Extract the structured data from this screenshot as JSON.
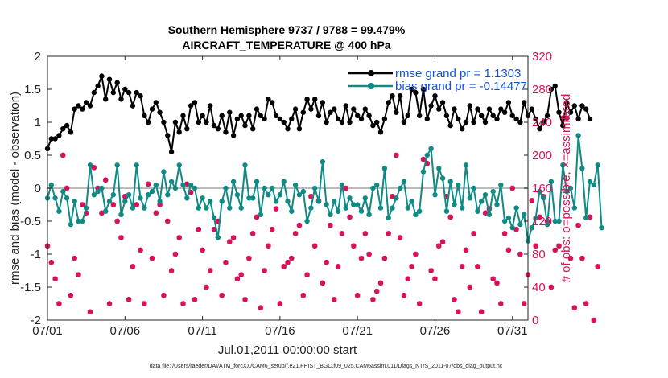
{
  "chart_data": {
    "type": "line",
    "title_line1": "Southern Hemisphere 9737 / 9788 = 99.479%",
    "title_line2": "AIRCRAFT_TEMPERATURE @ 400 hPa",
    "ylabel_left": "rmse and bias (model - observation)",
    "ylabel_right": "# of obs: o=possible; ×=assimilated",
    "xlabel": "Jul.01,2011 00:00:00 start",
    "footnote": "data file: /Users/raeder/DAI/ATM_forcXX/CAM6_setup/f.e21.FHIST_BGC.f09_025.CAM6assim.011/Diags_NTrS_2011-07/obs_diag_output.nc",
    "ylim_left": [
      -2,
      2
    ],
    "ylim_right": [
      0,
      320
    ],
    "xlim": [
      1,
      32
    ],
    "x_ticks": [
      1,
      6,
      11,
      16,
      21,
      26,
      31
    ],
    "x_tick_labels": [
      "07/01",
      "07/06",
      "07/11",
      "07/16",
      "07/21",
      "07/26",
      "07/31"
    ],
    "y_ticks_left": [
      -2,
      -1.5,
      -1,
      -0.5,
      0,
      0.5,
      1,
      1.5,
      2
    ],
    "y_tick_labels_left": [
      "-2",
      "-1.5",
      "-1",
      "-0.5",
      "0",
      "0.5",
      "1",
      "1.5",
      "2"
    ],
    "y_ticks_right": [
      0,
      40,
      80,
      120,
      160,
      200,
      240,
      280,
      320
    ],
    "y_tick_labels_right": [
      "0",
      "40",
      "80",
      "120",
      "160",
      "200",
      "240",
      "280",
      "320"
    ],
    "zero_line": 0,
    "colors": {
      "rmse": "#000000",
      "bias": "#0f8a84",
      "obs": "#d6125a",
      "zero": "#bbbbbb",
      "legend_text": "#1450d6"
    },
    "series": [
      {
        "name": "rmse grand pr = 1.1303",
        "x_start": 1,
        "x_step": 0.25,
        "values": [
          0.6,
          0.75,
          0.75,
          0.8,
          0.9,
          0.95,
          0.85,
          1.2,
          1.25,
          1.2,
          1.3,
          1.25,
          1.45,
          1.55,
          1.7,
          1.35,
          1.65,
          1.45,
          1.6,
          1.35,
          1.5,
          1.45,
          1.25,
          1.45,
          1.4,
          1.1,
          1.0,
          1.2,
          1.3,
          1.15,
          1.0,
          0.8,
          0.55,
          1.0,
          0.85,
          1.1,
          0.9,
          1.25,
          1.3,
          1.0,
          1.1,
          1.0,
          1.25,
          0.95,
          0.9,
          1.1,
          0.85,
          1.15,
          0.8,
          1.05,
          1.1,
          0.95,
          1.1,
          0.9,
          1.2,
          1.1,
          1.05,
          1.35,
          1.3,
          1.1,
          1.05,
          1.0,
          0.9,
          1.05,
          1.2,
          0.9,
          1.15,
          1.35,
          1.2,
          1.35,
          1.1,
          1.3,
          1.0,
          1.15,
          1.2,
          1.05,
          1.0,
          1.25,
          1.0,
          1.2,
          1.1,
          1.05,
          1.2,
          1.1,
          0.95,
          1.0,
          0.85,
          1.05,
          1.3,
          1.4,
          1.15,
          1.4,
          1.0,
          1.1,
          1.5,
          1.45,
          1.1,
          1.5,
          1.05,
          1.25,
          1.4,
          1.2,
          1.3,
          1.1,
          0.95,
          1.2,
          1.05,
          0.9,
          1.0,
          1.25,
          1.0,
          1.2,
          1.1,
          1.0,
          1.2,
          1.1,
          1.05,
          1.2,
          1.15,
          1.3,
          1.1,
          1.05,
          1.0,
          1.3,
          1.1,
          1.2,
          1.05,
          0.9,
          1.0,
          1.1,
          1.5,
          1.55,
          1.15,
          0.95,
          1.3,
          1.15,
          1.25,
          1.05,
          1.25,
          1.2,
          1.05
        ]
      },
      {
        "name": "bias grand pr = -0.14477",
        "x_start": 1,
        "x_step": 0.25,
        "values": [
          -0.15,
          0.05,
          -0.15,
          -0.35,
          -0.05,
          -0.15,
          -0.55,
          -0.2,
          -0.5,
          -0.5,
          -0.3,
          0.35,
          -0.1,
          -0.05,
          0.0,
          -0.35,
          -0.2,
          -0.1,
          0.35,
          -0.4,
          -0.2,
          -0.1,
          -0.3,
          0.35,
          -0.15,
          -0.3,
          -0.1,
          -0.05,
          0.05,
          -0.2,
          0.25,
          -0.1,
          0.1,
          0.0,
          0.35,
          0.05,
          -0.15,
          0.05,
          0.0,
          -0.3,
          -0.15,
          -0.3,
          -0.2,
          -0.45,
          -0.75,
          -0.2,
          0.0,
          -0.3,
          0.1,
          -0.1,
          -0.3,
          0.35,
          -0.15,
          -0.15,
          0.1,
          -0.4,
          0.0,
          -0.1,
          0.0,
          -0.2,
          -0.1,
          0.1,
          -0.2,
          -0.35,
          0.05,
          -0.1,
          -0.05,
          -0.5,
          -0.3,
          0.0,
          -0.2,
          0.4,
          -0.25,
          -0.4,
          -0.2,
          -0.35,
          0.05,
          -0.3,
          -0.15,
          -0.25,
          -0.25,
          -0.35,
          -0.15,
          -0.4,
          0.0,
          0.05,
          -0.3,
          0.3,
          -0.45,
          -0.3,
          -0.15,
          0.0,
          0.1,
          -0.3,
          -0.2,
          -0.4,
          -0.35,
          0.25,
          0.5,
          0.6,
          -0.1,
          0.3,
          0.15,
          -0.35,
          0.1,
          -0.25,
          0.05,
          -0.3,
          0.35,
          -0.15,
          0.0,
          -0.35,
          -0.2,
          -0.1,
          -0.4,
          -0.05,
          -0.25,
          0.05,
          -0.5,
          -0.45,
          -0.6,
          -0.3,
          -0.55,
          -0.4,
          -0.8,
          -0.6,
          -0.45,
          -0.05,
          -0.15,
          -0.55,
          0.1,
          -0.5,
          -0.5,
          0.35,
          -0.05,
          0.0,
          -0.3,
          0.8,
          0.3,
          -0.45,
          0.1,
          0.05,
          0.35,
          -0.6
        ]
      }
    ],
    "obs_assimilated": {
      "name": "# of obs assimilated",
      "x_start": 1,
      "x_step": 0.25,
      "values": [
        90,
        70,
        50,
        20,
        200,
        160,
        30,
        75,
        55,
        140,
        130,
        10,
        185,
        160,
        130,
        170,
        20,
        140,
        120,
        100,
        150,
        25,
        65,
        140,
        85,
        20,
        165,
        75,
        130,
        140,
        30,
        120,
        60,
        80,
        100,
        20,
        165,
        155,
        25,
        110,
        85,
        40,
        60,
        110,
        120,
        30,
        70,
        95,
        100,
        50,
        55,
        25,
        75,
        105,
        125,
        15,
        60,
        90,
        110,
        135,
        20,
        65,
        70,
        75,
        105,
        115,
        30,
        55,
        150,
        90,
        145,
        45,
        70,
        115,
        25,
        65,
        105,
        160,
        125,
        90,
        30,
        75,
        105,
        80,
        25,
        35,
        45,
        75,
        105,
        150,
        200,
        100,
        30,
        50,
        65,
        80,
        20,
        195,
        190,
        60,
        50,
        90,
        95,
        150,
        125,
        25,
        10,
        65,
        85,
        40,
        105,
        65,
        10,
        130,
        135,
        50,
        45,
        20,
        105,
        85,
        160,
        110,
        80,
        20,
        55,
        145,
        90,
        125,
        150,
        120,
        40,
        85,
        90,
        245,
        245,
        75,
        15,
        115,
        75,
        20,
        125,
        0,
        65
      ]
    }
  },
  "legend": {
    "rmse_label": "rmse grand pr = 1.1303",
    "bias_label": "bias grand pr = -0.14477"
  }
}
